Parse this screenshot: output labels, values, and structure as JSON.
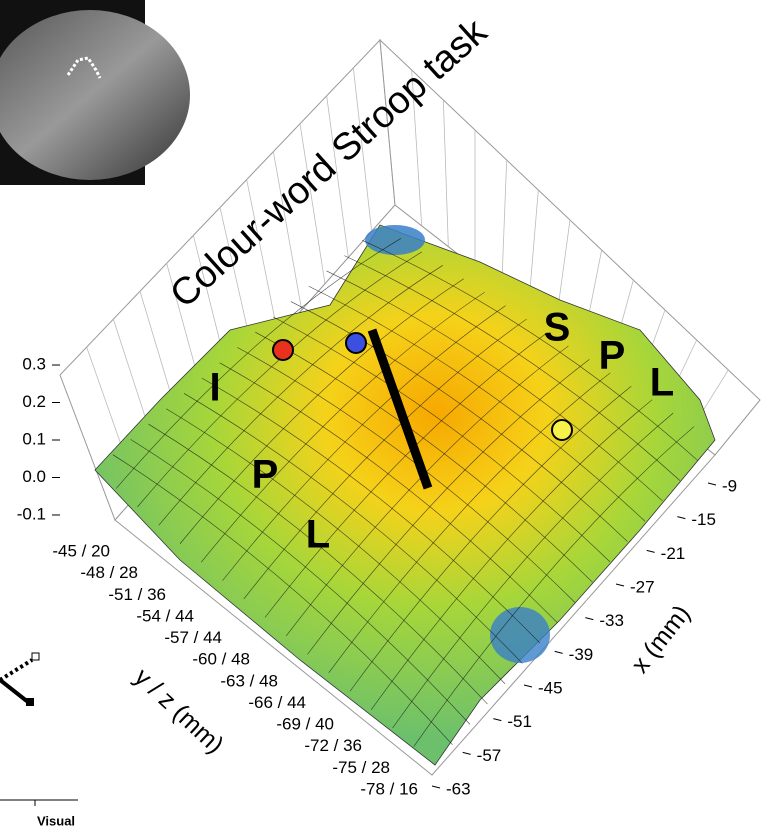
{
  "chart_data": {
    "type": "surface",
    "title": "Colour-word Stroop task",
    "x_label": "x (mm)",
    "y_label": "y / z (mm)",
    "zlim": [
      -0.1,
      0.3
    ],
    "zticks": [
      0.3,
      0.2,
      0.1,
      {
        "value": 0,
        "label": "0.0"
      },
      -0.1
    ],
    "y_categories": [
      "-45 / 20",
      "-48 / 28",
      "-51 / 36",
      "-54 / 44",
      "-57 / 44",
      "-60 / 48",
      "-63 / 48",
      "-66 / 44",
      "-69 / 40",
      "-72 / 36",
      "-75 / 28",
      "-78 / 16"
    ],
    "xlim": [
      -9,
      -63
    ],
    "xticks": [
      -9,
      -15,
      -21,
      -27,
      -33,
      -39,
      -45,
      -51,
      -57,
      -63
    ],
    "annotations": [
      "I",
      "P",
      "L",
      "S",
      "P",
      "L"
    ],
    "side_label": "Visual"
  }
}
